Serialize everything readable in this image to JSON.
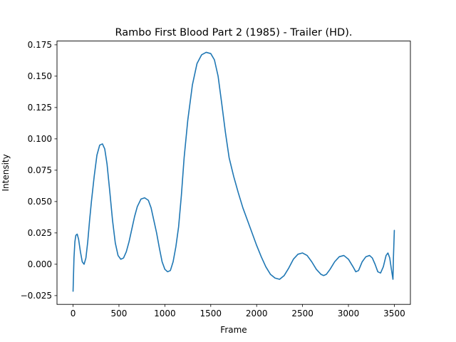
{
  "chart_data": {
    "type": "line",
    "title": "Rambo First Blood Part 2 (1985) - Trailer (HD).",
    "xlabel": "Frame",
    "ylabel": "Intensity",
    "xlim": [
      -175,
      3675
    ],
    "ylim": [
      -0.032,
      0.178
    ],
    "x_ticks": [
      0,
      500,
      1000,
      1500,
      2000,
      2500,
      3000,
      3500
    ],
    "x_tick_labels": [
      "0",
      "500",
      "1000",
      "1500",
      "2000",
      "2500",
      "3000",
      "3500"
    ],
    "y_ticks": [
      -0.025,
      0.0,
      0.025,
      0.05,
      0.075,
      0.1,
      0.125,
      0.15,
      0.175
    ],
    "y_tick_labels": [
      "−0.025",
      "0.000",
      "0.025",
      "0.050",
      "0.075",
      "0.100",
      "0.125",
      "0.150",
      "0.175"
    ],
    "grid": false,
    "color": "#1f77b4",
    "series": [
      {
        "x": [
          0,
          10,
          20,
          30,
          45,
          60,
          80,
          100,
          120,
          140,
          160,
          180,
          200,
          230,
          260,
          290,
          320,
          345,
          370,
          400,
          430,
          460,
          490,
          520,
          550,
          580,
          610,
          640,
          670,
          700,
          740,
          780,
          820,
          850,
          880,
          910,
          940,
          970,
          1000,
          1030,
          1060,
          1090,
          1120,
          1150,
          1180,
          1210,
          1250,
          1300,
          1350,
          1400,
          1450,
          1500,
          1540,
          1580,
          1620,
          1660,
          1700,
          1750,
          1800,
          1850,
          1900,
          1950,
          2000,
          2050,
          2100,
          2150,
          2200,
          2250,
          2300,
          2350,
          2400,
          2450,
          2500,
          2550,
          2600,
          2650,
          2700,
          2730,
          2760,
          2800,
          2850,
          2900,
          2950,
          3000,
          3050,
          3080,
          3110,
          3150,
          3190,
          3230,
          3260,
          3290,
          3320,
          3350,
          3380,
          3410,
          3430,
          3450,
          3470,
          3485,
          3490,
          3500
        ],
        "y": [
          -0.0215,
          0.005,
          0.018,
          0.023,
          0.024,
          0.02,
          0.01,
          0.002,
          0.0,
          0.005,
          0.018,
          0.035,
          0.05,
          0.07,
          0.087,
          0.095,
          0.096,
          0.092,
          0.08,
          0.058,
          0.035,
          0.017,
          0.007,
          0.004,
          0.005,
          0.01,
          0.018,
          0.028,
          0.038,
          0.046,
          0.052,
          0.053,
          0.051,
          0.045,
          0.035,
          0.025,
          0.013,
          0.002,
          -0.004,
          -0.006,
          -0.005,
          0.002,
          0.014,
          0.03,
          0.055,
          0.085,
          0.115,
          0.143,
          0.16,
          0.167,
          0.169,
          0.168,
          0.163,
          0.15,
          0.128,
          0.105,
          0.085,
          0.07,
          0.057,
          0.045,
          0.035,
          0.025,
          0.015,
          0.006,
          -0.002,
          -0.008,
          -0.011,
          -0.012,
          -0.009,
          -0.003,
          0.004,
          0.008,
          0.009,
          0.007,
          0.002,
          -0.004,
          -0.008,
          -0.009,
          -0.008,
          -0.004,
          0.002,
          0.006,
          0.007,
          0.004,
          -0.002,
          -0.006,
          -0.005,
          0.002,
          0.006,
          0.007,
          0.005,
          0.0,
          -0.006,
          -0.007,
          -0.002,
          0.007,
          0.009,
          0.005,
          -0.005,
          -0.012,
          0.005,
          0.027
        ]
      }
    ]
  }
}
